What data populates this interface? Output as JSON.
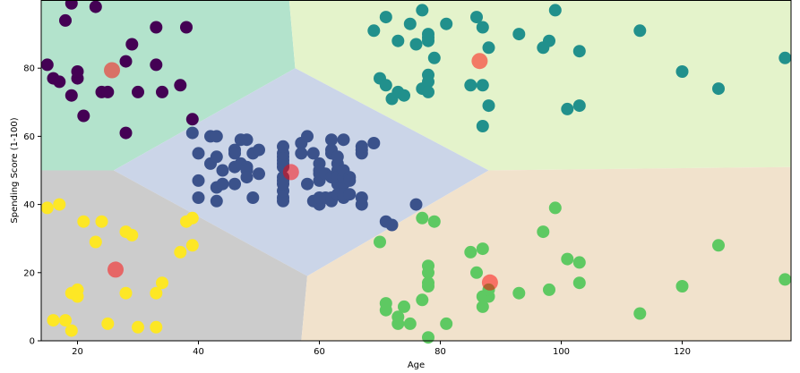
{
  "chart_data": {
    "type": "scatter",
    "title": "",
    "xlabel": "Age",
    "ylabel": "Spending Score (1-100)",
    "xlim": [
      14,
      138
    ],
    "ylim": [
      0,
      100
    ],
    "xticks": [
      20,
      40,
      60,
      80,
      100,
      120
    ],
    "yticks": [
      0,
      20,
      40,
      60,
      80
    ],
    "grid": false,
    "regions": [
      {
        "cluster": "purple",
        "color": "#b3e3cc",
        "polygon": [
          [
            14,
            100
          ],
          [
            55,
            100
          ],
          [
            56,
            80
          ],
          [
            26,
            50
          ],
          [
            14,
            50
          ]
        ]
      },
      {
        "cluster": "teal",
        "color": "#e4f3cb",
        "polygon": [
          [
            55,
            100
          ],
          [
            138,
            100
          ],
          [
            138,
            51
          ],
          [
            88,
            50
          ],
          [
            56,
            80
          ]
        ]
      },
      {
        "cluster": "navy",
        "color": "#cbd5e8",
        "polygon": [
          [
            26,
            50
          ],
          [
            56,
            80
          ],
          [
            88,
            50
          ],
          [
            58,
            19
          ]
        ]
      },
      {
        "cluster": "yellow",
        "color": "#cccccc",
        "polygon": [
          [
            14,
            50
          ],
          [
            26,
            50
          ],
          [
            58,
            19
          ],
          [
            57,
            0
          ],
          [
            14,
            0
          ]
        ]
      },
      {
        "cluster": "green",
        "color": "#f1e2cc",
        "polygon": [
          [
            58,
            19
          ],
          [
            88,
            50
          ],
          [
            138,
            51
          ],
          [
            138,
            0
          ],
          [
            57,
            0
          ]
        ]
      }
    ],
    "series": [
      {
        "color": "#440154",
        "points": [
          [
            15,
            81
          ],
          [
            16,
            77
          ],
          [
            17,
            76
          ],
          [
            18,
            94
          ],
          [
            19,
            99
          ],
          [
            19,
            72
          ],
          [
            20,
            77
          ],
          [
            20,
            79
          ],
          [
            21,
            66
          ],
          [
            23,
            98
          ],
          [
            24,
            73
          ],
          [
            25,
            73
          ],
          [
            28,
            82
          ],
          [
            28,
            61
          ],
          [
            29,
            87
          ],
          [
            30,
            73
          ],
          [
            33,
            92
          ],
          [
            33,
            81
          ],
          [
            34,
            73
          ],
          [
            37,
            75
          ],
          [
            38,
            92
          ],
          [
            39,
            65
          ]
        ]
      },
      {
        "color": "#21908c",
        "points": [
          [
            69,
            91
          ],
          [
            70,
            77
          ],
          [
            71,
            75
          ],
          [
            71,
            95
          ],
          [
            72,
            71
          ],
          [
            73,
            73
          ],
          [
            73,
            88
          ],
          [
            74,
            72
          ],
          [
            75,
            93
          ],
          [
            76,
            87
          ],
          [
            77,
            97
          ],
          [
            77,
            74
          ],
          [
            78,
            90
          ],
          [
            78,
            88
          ],
          [
            78,
            89
          ],
          [
            78,
            78
          ],
          [
            78,
            76
          ],
          [
            78,
            73
          ],
          [
            79,
            83
          ],
          [
            81,
            93
          ],
          [
            85,
            75
          ],
          [
            86,
            95
          ],
          [
            87,
            75
          ],
          [
            87,
            92
          ],
          [
            87,
            63
          ],
          [
            88,
            86
          ],
          [
            88,
            69
          ],
          [
            93,
            90
          ],
          [
            97,
            86
          ],
          [
            98,
            88
          ],
          [
            99,
            97
          ],
          [
            101,
            68
          ],
          [
            103,
            85
          ],
          [
            103,
            69
          ],
          [
            113,
            91
          ],
          [
            120,
            79
          ],
          [
            126,
            74
          ],
          [
            137,
            83
          ]
        ]
      },
      {
        "color": "#3b528b",
        "points": [
          [
            39,
            61
          ],
          [
            40,
            55
          ],
          [
            40,
            47
          ],
          [
            40,
            42
          ],
          [
            42,
            52
          ],
          [
            42,
            60
          ],
          [
            43,
            54
          ],
          [
            43,
            60
          ],
          [
            43,
            45
          ],
          [
            43,
            41
          ],
          [
            44,
            50
          ],
          [
            44,
            46
          ],
          [
            46,
            51
          ],
          [
            46,
            46
          ],
          [
            46,
            56
          ],
          [
            46,
            55
          ],
          [
            47,
            52
          ],
          [
            47,
            59
          ],
          [
            48,
            51
          ],
          [
            48,
            59
          ],
          [
            48,
            50
          ],
          [
            48,
            48
          ],
          [
            49,
            55
          ],
          [
            49,
            42
          ],
          [
            50,
            49
          ],
          [
            50,
            56
          ],
          [
            54,
            47
          ],
          [
            54,
            54
          ],
          [
            54,
            53
          ],
          [
            54,
            48
          ],
          [
            54,
            52
          ],
          [
            54,
            42
          ],
          [
            54,
            51
          ],
          [
            54,
            55
          ],
          [
            54,
            41
          ],
          [
            54,
            44
          ],
          [
            54,
            57
          ],
          [
            54,
            46
          ],
          [
            57,
            58
          ],
          [
            57,
            55
          ],
          [
            58,
            60
          ],
          [
            58,
            46
          ],
          [
            59,
            55
          ],
          [
            59,
            41
          ],
          [
            60,
            49
          ],
          [
            60,
            40
          ],
          [
            60,
            42
          ],
          [
            60,
            52
          ],
          [
            60,
            47
          ],
          [
            60,
            50
          ],
          [
            61,
            42
          ],
          [
            61,
            49
          ],
          [
            62,
            41
          ],
          [
            62,
            48
          ],
          [
            62,
            59
          ],
          [
            62,
            55
          ],
          [
            62,
            56
          ],
          [
            62,
            42
          ],
          [
            63,
            50
          ],
          [
            63,
            46
          ],
          [
            63,
            43
          ],
          [
            63,
            48
          ],
          [
            63,
            52
          ],
          [
            63,
            54
          ],
          [
            64,
            42
          ],
          [
            64,
            46
          ],
          [
            64,
            48
          ],
          [
            64,
            50
          ],
          [
            64,
            43
          ],
          [
            64,
            59
          ],
          [
            65,
            43
          ],
          [
            65,
            48
          ],
          [
            65,
            47
          ],
          [
            67,
            56
          ],
          [
            67,
            40
          ],
          [
            67,
            42
          ],
          [
            67,
            55
          ],
          [
            67,
            57
          ],
          [
            69,
            58
          ],
          [
            71,
            35
          ],
          [
            72,
            34
          ],
          [
            76,
            40
          ]
        ]
      },
      {
        "color": "#fde725",
        "points": [
          [
            15,
            39
          ],
          [
            16,
            6
          ],
          [
            17,
            40
          ],
          [
            18,
            6
          ],
          [
            19,
            14
          ],
          [
            19,
            3
          ],
          [
            20,
            15
          ],
          [
            20,
            13
          ],
          [
            21,
            35
          ],
          [
            23,
            29
          ],
          [
            24,
            35
          ],
          [
            25,
            5
          ],
          [
            28,
            14
          ],
          [
            28,
            32
          ],
          [
            29,
            31
          ],
          [
            30,
            4
          ],
          [
            33,
            4
          ],
          [
            33,
            14
          ],
          [
            34,
            17
          ],
          [
            37,
            26
          ],
          [
            38,
            35
          ],
          [
            39,
            36
          ],
          [
            39,
            28
          ]
        ]
      },
      {
        "color": "#5ec962",
        "points": [
          [
            70,
            29
          ],
          [
            71,
            11
          ],
          [
            71,
            9
          ],
          [
            73,
            5
          ],
          [
            73,
            7
          ],
          [
            74,
            10
          ],
          [
            75,
            5
          ],
          [
            77,
            12
          ],
          [
            77,
            36
          ],
          [
            78,
            22
          ],
          [
            78,
            17
          ],
          [
            78,
            20
          ],
          [
            78,
            16
          ],
          [
            78,
            1
          ],
          [
            79,
            35
          ],
          [
            81,
            5
          ],
          [
            85,
            26
          ],
          [
            86,
            20
          ],
          [
            87,
            27
          ],
          [
            87,
            13
          ],
          [
            87,
            10
          ],
          [
            88,
            13
          ],
          [
            88,
            15
          ],
          [
            93,
            14
          ],
          [
            97,
            32
          ],
          [
            98,
            15
          ],
          [
            99,
            39
          ],
          [
            101,
            24
          ],
          [
            103,
            17
          ],
          [
            103,
            23
          ],
          [
            113,
            8
          ],
          [
            120,
            16
          ],
          [
            126,
            28
          ],
          [
            137,
            18
          ]
        ]
      }
    ],
    "centroids": [
      [
        25.7,
        79.4
      ],
      [
        86.5,
        82.1
      ],
      [
        55.3,
        49.5
      ],
      [
        26.3,
        20.9
      ],
      [
        88.2,
        17.1
      ]
    ],
    "centroid_color": "#ff0000"
  }
}
